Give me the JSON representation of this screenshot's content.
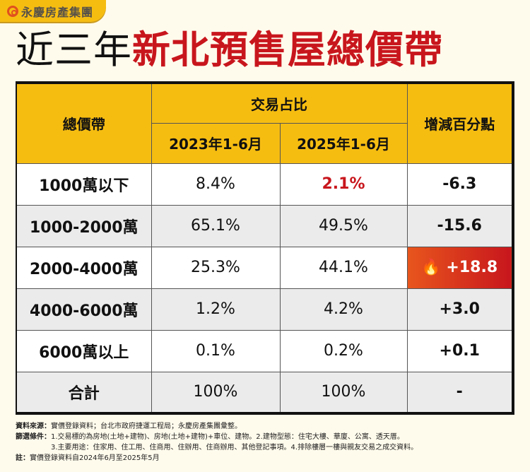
{
  "logo": {
    "text": "永慶房產集團"
  },
  "title": {
    "part1": "近三年",
    "part2": "新北預售屋總價帶"
  },
  "colors": {
    "accent": "#f6bd11",
    "highlight": "#c8161d"
  },
  "table": {
    "header": {
      "col1": "總價帶",
      "group": "交易占比",
      "sub1": "2023年1-6月",
      "sub2": "2025年1-6月",
      "col4": "增減百分點"
    },
    "rows": [
      {
        "band": "1000萬以下",
        "y2023": "8.4%",
        "y2025": "2.1%",
        "change": "-6.3"
      },
      {
        "band": "1000-2000萬",
        "y2023": "65.1%",
        "y2025": "49.5%",
        "change": "-15.6"
      },
      {
        "band": "2000-4000萬",
        "y2023": "25.3%",
        "y2025": "44.1%",
        "change": "+18.8",
        "icon": "fire-icon"
      },
      {
        "band": "4000-6000萬",
        "y2023": "1.2%",
        "y2025": "4.2%",
        "change": "+3.0"
      },
      {
        "band": "6000萬以上",
        "y2023": "0.1%",
        "y2025": "0.2%",
        "change": "+0.1"
      },
      {
        "band": "合計",
        "y2023": "100%",
        "y2025": "100%",
        "change": "-"
      }
    ]
  },
  "notes": {
    "source_label": "資料來源：",
    "source": "實價登錄資料；台北市政府捷運工程局；永慶房產集團彙整。",
    "filter_label": "篩選條件：",
    "filter1": "1.交易標的為房地(土地+建物)、房地(土地+建物)+車位、建物。2.建物型態：住宅大樓、華廈、公寓、透天厝。",
    "filter2": "3.主要用途：住家用、住工用、住商用、住辦用、住商辦用、其他登記事項。4.排除樓層一樓與親友交易之成交資料。",
    "note_label": "註：",
    "note": "實價登錄資料自2024年6月至2025年5月"
  }
}
